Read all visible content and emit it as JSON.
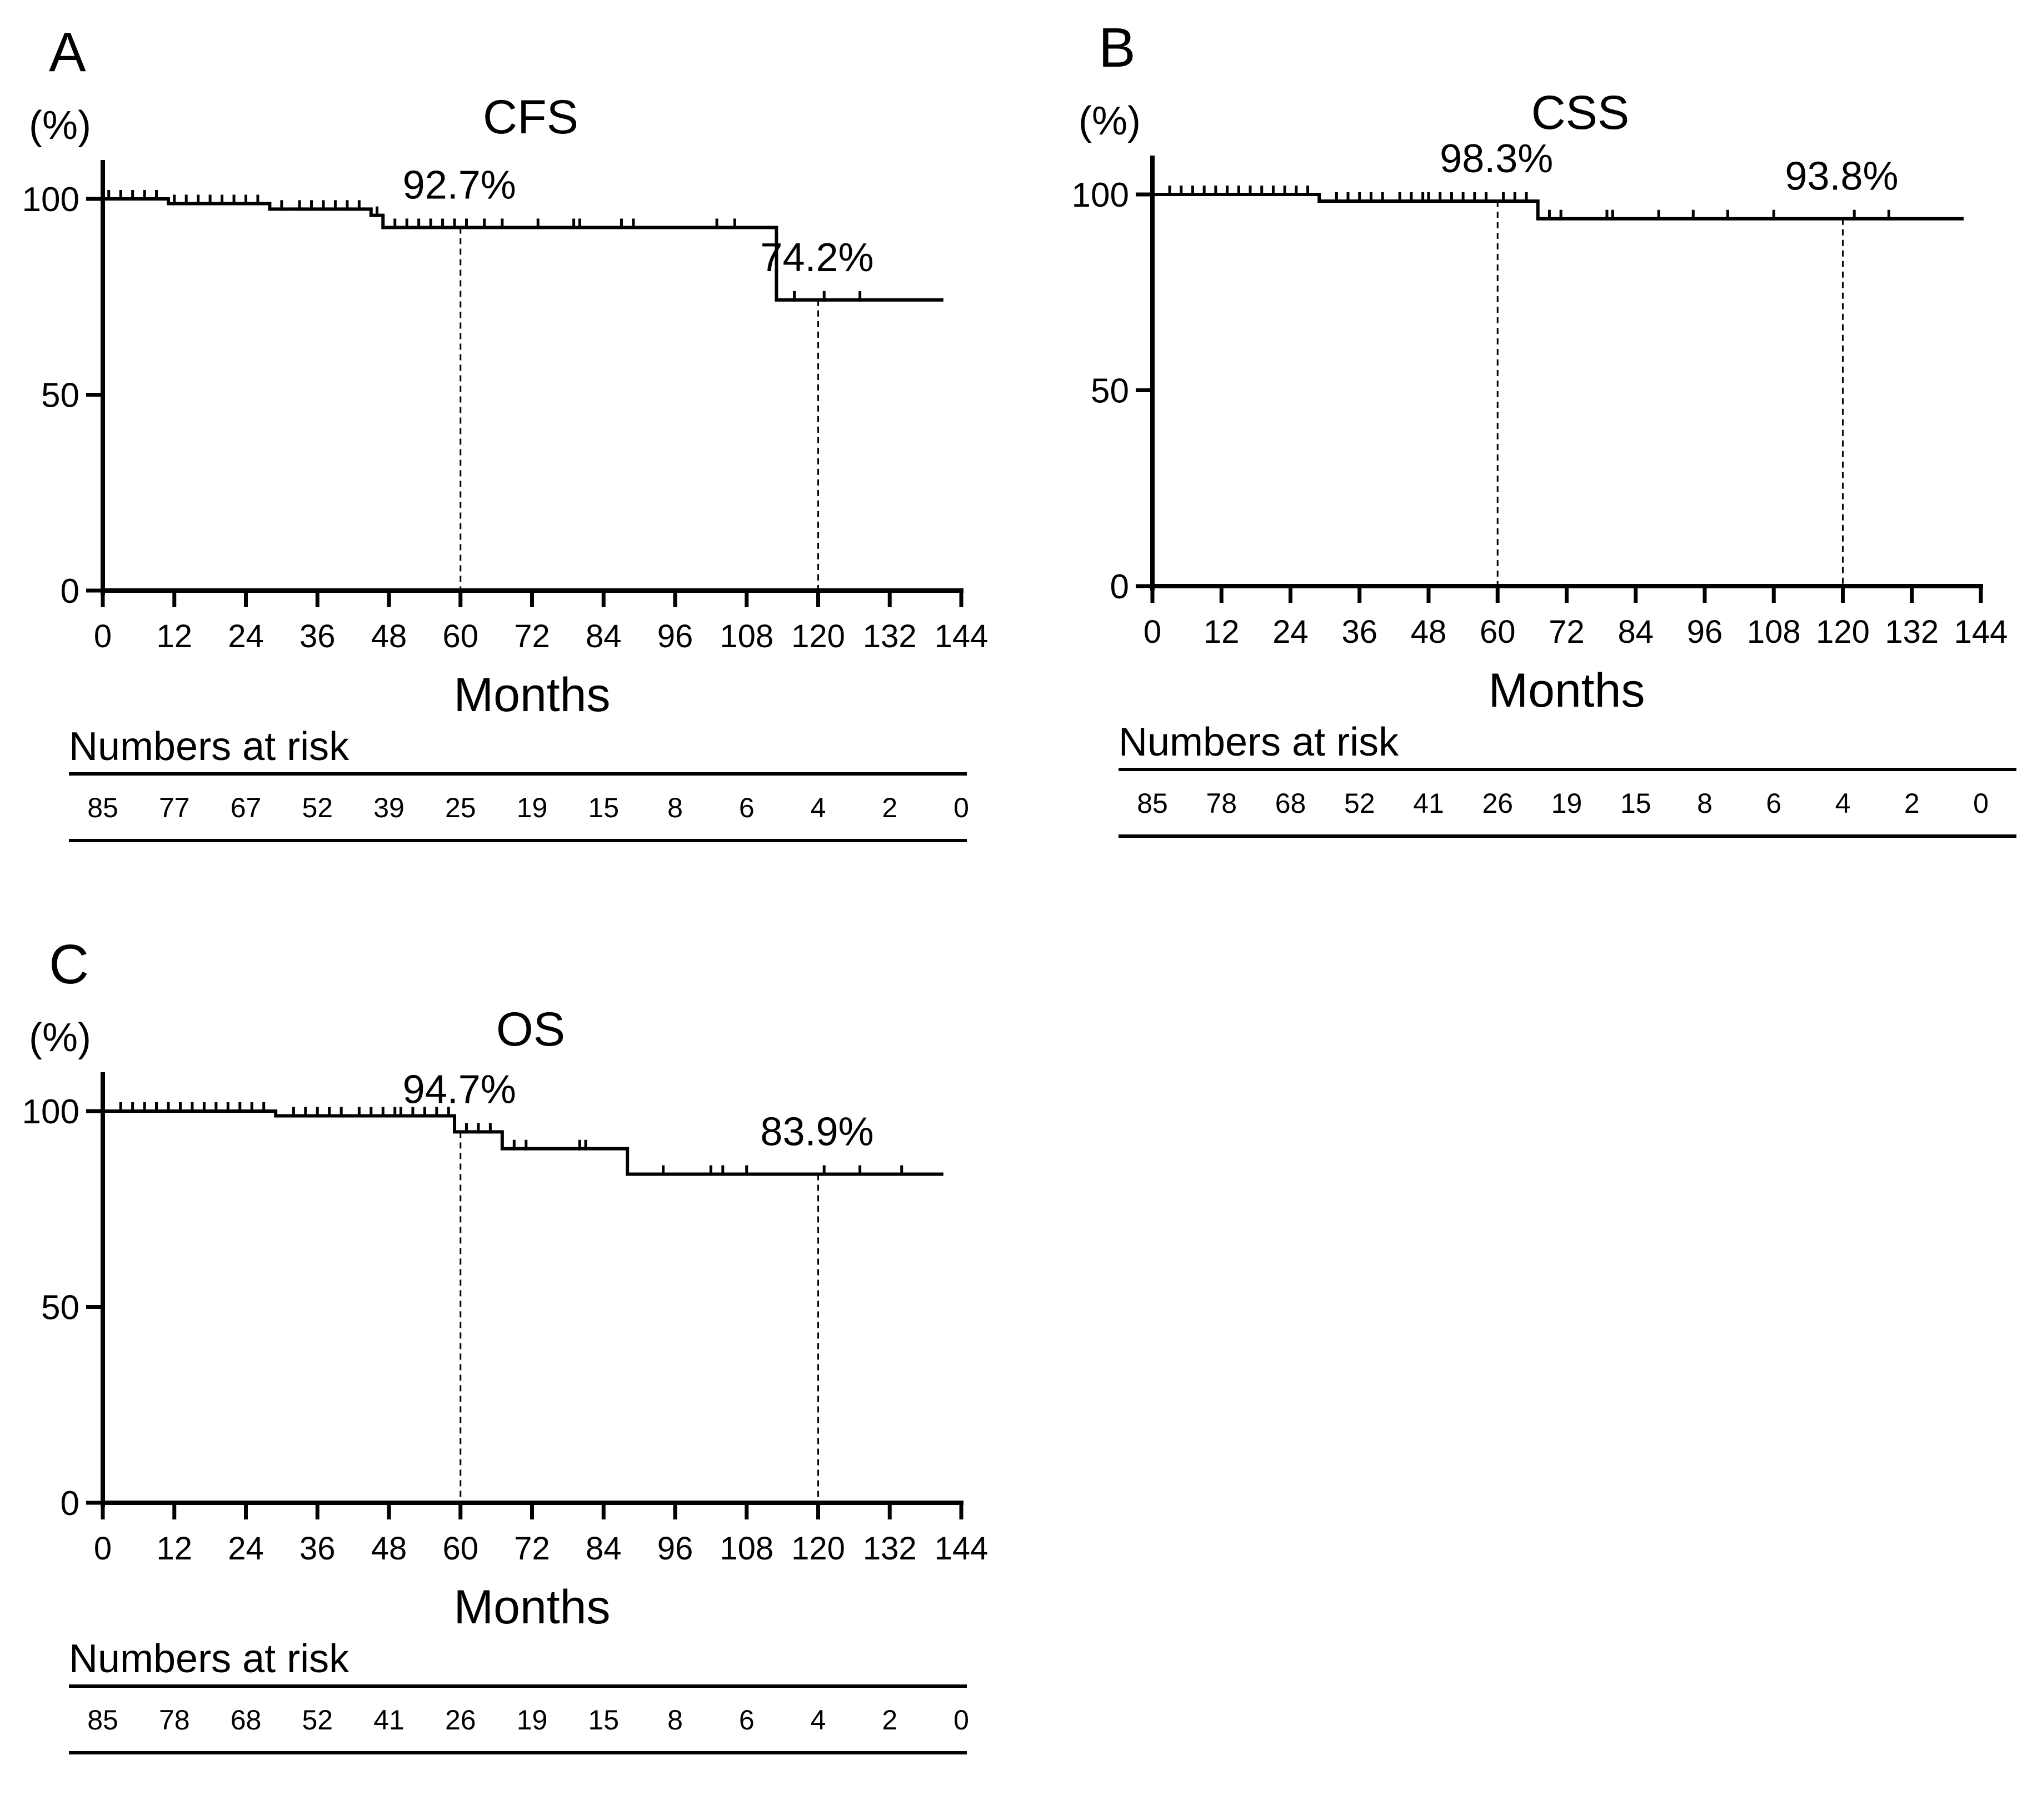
{
  "chart_data": [
    {
      "type": "line",
      "panel_label": "A",
      "title": "CFS",
      "ylabel": "(%)",
      "xlabel": "Months",
      "xlim": [
        0,
        144
      ],
      "ylim": [
        0,
        100
      ],
      "xticks": [
        0,
        12,
        24,
        36,
        48,
        60,
        72,
        84,
        96,
        108,
        120,
        132,
        144
      ],
      "yticks": [
        0,
        50,
        100
      ],
      "curve": [
        [
          0,
          100
        ],
        [
          11,
          100
        ],
        [
          11,
          98.8
        ],
        [
          28,
          98.8
        ],
        [
          28,
          97.4
        ],
        [
          45,
          97.4
        ],
        [
          45,
          95.8
        ],
        [
          47,
          95.8
        ],
        [
          47,
          92.7
        ],
        [
          113,
          92.7
        ],
        [
          113,
          74.2
        ],
        [
          141,
          74.2
        ]
      ],
      "censor_times": [
        1,
        3,
        5,
        7,
        9,
        12,
        14,
        16,
        18,
        20,
        22,
        24,
        26,
        30,
        33,
        35,
        37,
        39,
        41,
        43,
        46,
        49,
        51,
        53,
        55,
        57,
        59,
        61,
        64,
        67,
        73,
        79,
        80,
        87,
        89,
        103,
        106,
        116,
        121,
        127
      ],
      "reference_lines": [
        60,
        120
      ],
      "annotations": [
        {
          "x": 60,
          "y": 92.7,
          "text": "92.7%"
        },
        {
          "x": 120,
          "y": 74.2,
          "text": "74.2%"
        }
      ],
      "numbers_at_risk_title": "Numbers at risk",
      "numbers_at_risk": [
        "85",
        "77",
        "67",
        "52",
        "39",
        "25",
        "19",
        "15",
        "8",
        "6",
        "4",
        "2",
        "0"
      ]
    },
    {
      "type": "line",
      "panel_label": "B",
      "title": "CSS",
      "ylabel": "(%)",
      "xlabel": "Months",
      "xlim": [
        0,
        144
      ],
      "ylim": [
        0,
        100
      ],
      "xticks": [
        0,
        12,
        24,
        36,
        48,
        60,
        72,
        84,
        96,
        108,
        120,
        132,
        144
      ],
      "yticks": [
        0,
        50,
        100
      ],
      "curve": [
        [
          0,
          100
        ],
        [
          29,
          100
        ],
        [
          29,
          98.3
        ],
        [
          67,
          98.3
        ],
        [
          67,
          93.8
        ],
        [
          141,
          93.8
        ]
      ],
      "censor_times": [
        3,
        5,
        7,
        9,
        11,
        13,
        15,
        17,
        19,
        21,
        23,
        25,
        27,
        32,
        34,
        36,
        38,
        40,
        43,
        45,
        47,
        48,
        50,
        52,
        54,
        56,
        58,
        61,
        63,
        65,
        69,
        71,
        79,
        80,
        88,
        94,
        100,
        108,
        122,
        128
      ],
      "reference_lines": [
        60,
        120
      ],
      "annotations": [
        {
          "x": 60,
          "y": 98.3,
          "text": "98.3%"
        },
        {
          "x": 120,
          "y": 93.8,
          "text": "93.8%"
        }
      ],
      "numbers_at_risk_title": "Numbers at risk",
      "numbers_at_risk": [
        "85",
        "78",
        "68",
        "52",
        "41",
        "26",
        "19",
        "15",
        "8",
        "6",
        "4",
        "2",
        "0"
      ]
    },
    {
      "type": "line",
      "panel_label": "C",
      "title": "OS",
      "ylabel": "(%)",
      "xlabel": "Months",
      "xlim": [
        0,
        144
      ],
      "ylim": [
        0,
        100
      ],
      "xticks": [
        0,
        12,
        24,
        36,
        48,
        60,
        72,
        84,
        96,
        108,
        120,
        132,
        144
      ],
      "yticks": [
        0,
        50,
        100
      ],
      "curve": [
        [
          0,
          100
        ],
        [
          29,
          100
        ],
        [
          29,
          98.8
        ],
        [
          59,
          98.8
        ],
        [
          59,
          94.7
        ],
        [
          67,
          94.7
        ],
        [
          67,
          90.4
        ],
        [
          88,
          90.4
        ],
        [
          88,
          83.9
        ],
        [
          141,
          83.9
        ]
      ],
      "censor_times": [
        3,
        5,
        7,
        9,
        11,
        13,
        15,
        17,
        19,
        21,
        23,
        25,
        27,
        32,
        34,
        36,
        38,
        40,
        43,
        45,
        47,
        49,
        50,
        52,
        54,
        56,
        58,
        61,
        63,
        65,
        69,
        71,
        80,
        81,
        88,
        94,
        102,
        104,
        108,
        121,
        127,
        134
      ],
      "reference_lines": [
        60,
        120
      ],
      "annotations": [
        {
          "x": 60,
          "y": 94.7,
          "text": "94.7%"
        },
        {
          "x": 120,
          "y": 83.9,
          "text": "83.9%"
        }
      ],
      "numbers_at_risk_title": "Numbers at risk",
      "numbers_at_risk": [
        "85",
        "78",
        "68",
        "52",
        "41",
        "26",
        "19",
        "15",
        "8",
        "6",
        "4",
        "2",
        "0"
      ]
    }
  ]
}
